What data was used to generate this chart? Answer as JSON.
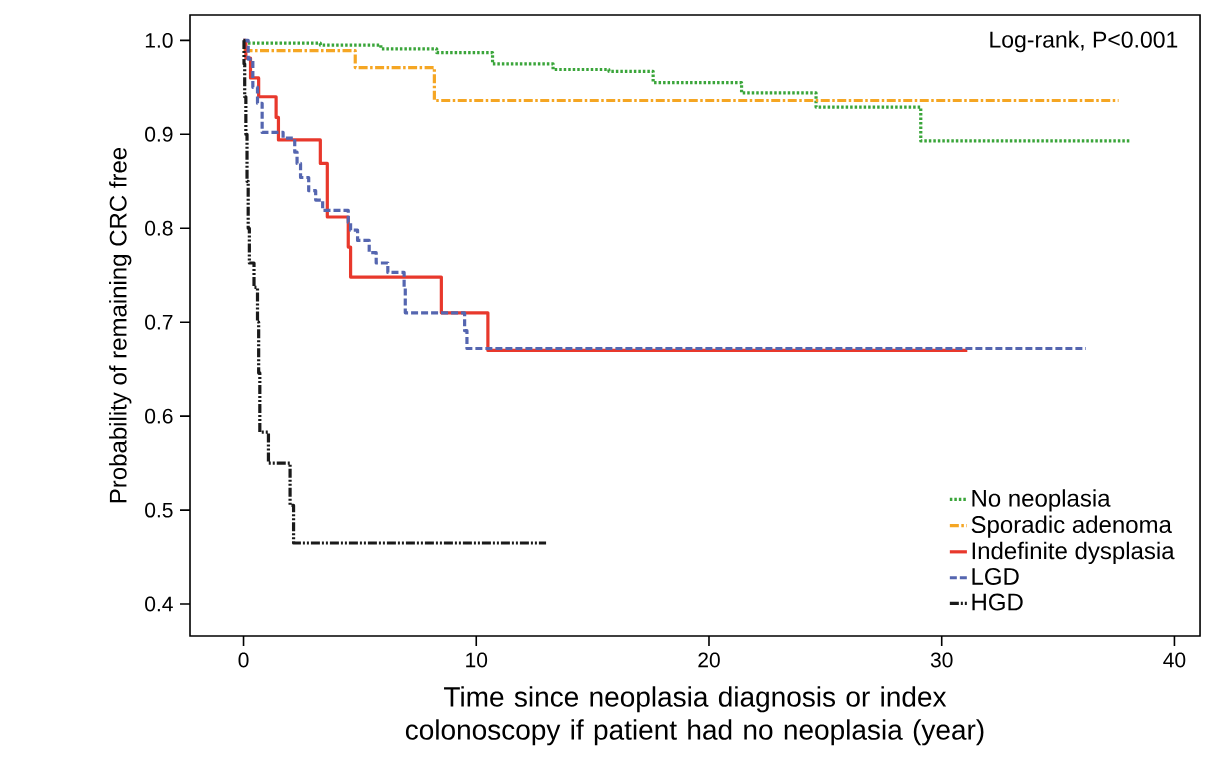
{
  "chart_data": {
    "type": "step",
    "xlabel": "Time since neoplasia diagnosis or index colonoscopy if patient had no neoplasia (year)",
    "ylabel": "Probability of remaining CRC free",
    "annotations": [
      "Log-rank, P<0.001"
    ],
    "xlim": [
      -2.3,
      41.1
    ],
    "ylim": [
      0.366,
      1.027
    ],
    "xticks": [
      0,
      10,
      20,
      30,
      40
    ],
    "yticks": [
      0.4,
      0.5,
      0.6,
      0.7,
      0.8,
      0.9,
      {
        "value": 1.0,
        "label": "1.0"
      }
    ],
    "grid": false,
    "legend": "bottom right",
    "series": [
      {
        "name": "No neoplasia",
        "color": "#3aa53a",
        "line_style": "dotted",
        "x": [
          0,
          3.3,
          5.9,
          8.3,
          10.7,
          13.3,
          15.7,
          17.6,
          21.4,
          24.6,
          29.1,
          38.1
        ],
        "values": [
          0.997,
          0.995,
          0.991,
          0.987,
          0.975,
          0.969,
          0.967,
          0.955,
          0.944,
          0.929,
          0.893,
          0.893
        ]
      },
      {
        "name": "Sporadic adenoma",
        "color": "#f5a623",
        "line_style": "dashdot",
        "x": [
          0,
          4.8,
          8.2,
          37.6
        ],
        "values": [
          0.989,
          0.971,
          0.936,
          0.936
        ]
      },
      {
        "name": "Indefinite dysplasia",
        "color": "#e8382c",
        "line_style": "solid",
        "x": [
          0,
          0.1,
          0.3,
          0.65,
          1.4,
          1.5,
          3.3,
          3.6,
          4.5,
          4.6,
          8.5,
          10.5,
          31.1
        ],
        "values": [
          1.0,
          0.981,
          0.96,
          0.94,
          0.918,
          0.894,
          0.869,
          0.812,
          0.78,
          0.748,
          0.71,
          0.67,
          0.67
        ]
      },
      {
        "name": "LGD",
        "color": "#5566b0",
        "line_style": "dashed",
        "x": [
          0,
          0.2,
          0.4,
          0.6,
          0.8,
          1.7,
          2.2,
          2.3,
          2.45,
          2.8,
          3.1,
          3.4,
          4.5,
          4.6,
          4.9,
          5.4,
          5.7,
          6.2,
          6.9,
          6.95,
          9.5,
          9.6,
          36.2
        ],
        "values": [
          1.0,
          0.98,
          0.95,
          0.933,
          0.902,
          0.896,
          0.881,
          0.869,
          0.854,
          0.84,
          0.83,
          0.819,
          0.806,
          0.798,
          0.787,
          0.774,
          0.763,
          0.753,
          0.737,
          0.71,
          0.691,
          0.672,
          0.672
        ]
      },
      {
        "name": "HGD",
        "color": "#1a1a1a",
        "line_style": "dashdotdot",
        "x": [
          0,
          0.02,
          0.05,
          0.1,
          0.15,
          0.2,
          0.25,
          0.45,
          0.6,
          0.65,
          0.7,
          1.07,
          2.0,
          2.15,
          13.0
        ],
        "values": [
          1.0,
          0.975,
          0.94,
          0.9,
          0.85,
          0.8,
          0.763,
          0.737,
          0.7,
          0.646,
          0.583,
          0.55,
          0.505,
          0.465,
          0.465
        ]
      }
    ]
  }
}
